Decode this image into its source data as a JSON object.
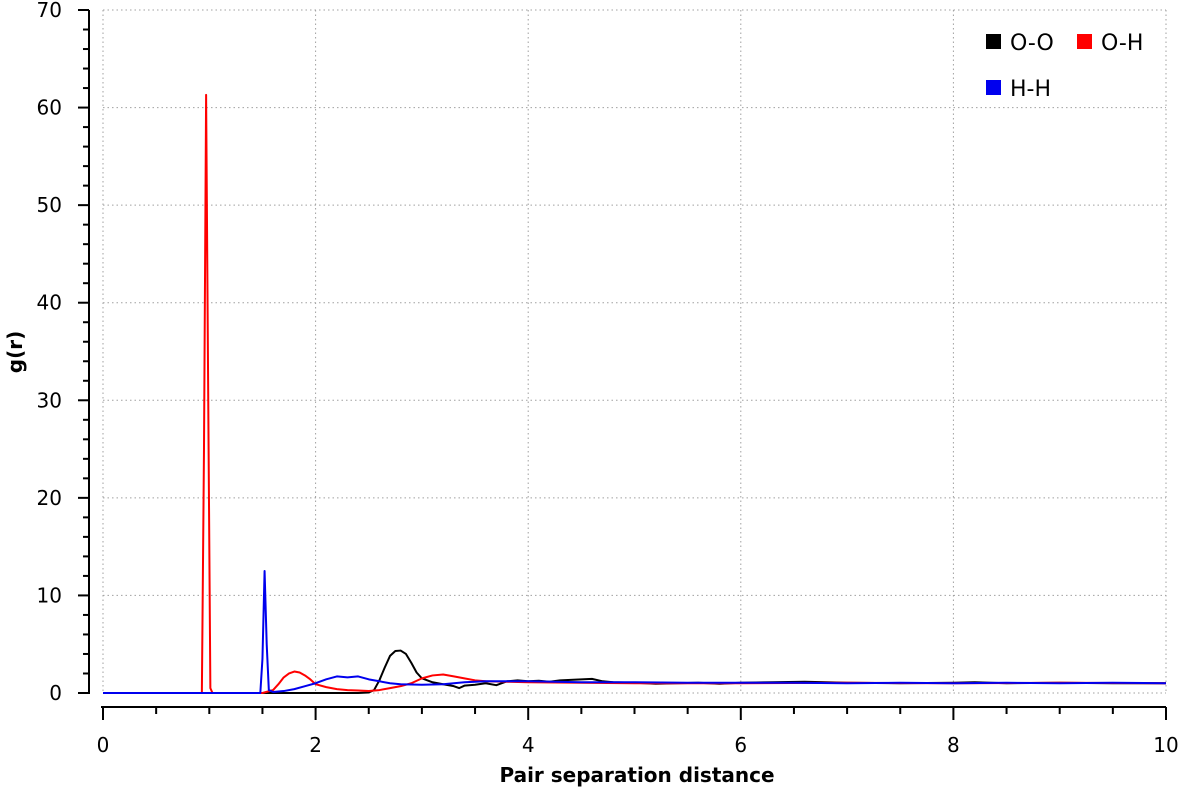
{
  "chart_data": {
    "type": "line",
    "title": "",
    "xlabel": "Pair separation distance",
    "ylabel": "g(r)",
    "xlim": [
      0,
      10
    ],
    "ylim": [
      0,
      70
    ],
    "x_ticks": [
      0,
      2,
      4,
      6,
      8,
      10
    ],
    "y_ticks": [
      0,
      10,
      20,
      30,
      40,
      50,
      60,
      70
    ],
    "grid": true,
    "legend_position": "top-right",
    "series": [
      {
        "name": "O-O",
        "color": "#000000",
        "points": [
          [
            0.0,
            0
          ],
          [
            2.4,
            0
          ],
          [
            2.5,
            0.05
          ],
          [
            2.55,
            0.3
          ],
          [
            2.6,
            1.3
          ],
          [
            2.65,
            2.6
          ],
          [
            2.7,
            3.8
          ],
          [
            2.75,
            4.3
          ],
          [
            2.8,
            4.35
          ],
          [
            2.85,
            4.0
          ],
          [
            2.9,
            3.1
          ],
          [
            2.95,
            2.1
          ],
          [
            3.0,
            1.5
          ],
          [
            3.1,
            1.1
          ],
          [
            3.2,
            0.9
          ],
          [
            3.3,
            0.7
          ],
          [
            3.35,
            0.5
          ],
          [
            3.4,
            0.75
          ],
          [
            3.5,
            0.85
          ],
          [
            3.6,
            1.0
          ],
          [
            3.7,
            0.8
          ],
          [
            3.8,
            1.2
          ],
          [
            3.9,
            1.3
          ],
          [
            4.0,
            1.2
          ],
          [
            4.1,
            1.25
          ],
          [
            4.2,
            1.15
          ],
          [
            4.3,
            1.3
          ],
          [
            4.4,
            1.35
          ],
          [
            4.5,
            1.4
          ],
          [
            4.6,
            1.45
          ],
          [
            4.7,
            1.2
          ],
          [
            4.8,
            1.1
          ],
          [
            5.0,
            1.05
          ],
          [
            5.2,
            0.95
          ],
          [
            5.4,
            1.0
          ],
          [
            5.6,
            1.05
          ],
          [
            5.8,
            0.95
          ],
          [
            6.0,
            1.05
          ],
          [
            6.3,
            1.1
          ],
          [
            6.6,
            1.15
          ],
          [
            7.0,
            1.05
          ],
          [
            7.5,
            1.0
          ],
          [
            8.0,
            1.05
          ],
          [
            8.2,
            1.1
          ],
          [
            8.5,
            1.0
          ],
          [
            9.0,
            1.05
          ],
          [
            9.5,
            1.0
          ],
          [
            10.0,
            1.0
          ]
        ]
      },
      {
        "name": "O-H",
        "color": "#ff0000",
        "points": [
          [
            0.0,
            0
          ],
          [
            0.93,
            0
          ],
          [
            0.95,
            25
          ],
          [
            0.97,
            61.3
          ],
          [
            0.99,
            30
          ],
          [
            1.01,
            0.5
          ],
          [
            1.03,
            0
          ],
          [
            1.5,
            0
          ],
          [
            1.6,
            0.3
          ],
          [
            1.65,
            0.9
          ],
          [
            1.7,
            1.6
          ],
          [
            1.75,
            2.0
          ],
          [
            1.8,
            2.2
          ],
          [
            1.85,
            2.1
          ],
          [
            1.9,
            1.8
          ],
          [
            1.95,
            1.4
          ],
          [
            2.0,
            0.9
          ],
          [
            2.1,
            0.6
          ],
          [
            2.2,
            0.4
          ],
          [
            2.3,
            0.3
          ],
          [
            2.4,
            0.25
          ],
          [
            2.5,
            0.2
          ],
          [
            2.6,
            0.3
          ],
          [
            2.7,
            0.5
          ],
          [
            2.8,
            0.7
          ],
          [
            2.9,
            1.0
          ],
          [
            3.0,
            1.5
          ],
          [
            3.1,
            1.8
          ],
          [
            3.2,
            1.9
          ],
          [
            3.3,
            1.7
          ],
          [
            3.4,
            1.5
          ],
          [
            3.5,
            1.3
          ],
          [
            3.6,
            1.2
          ],
          [
            3.8,
            1.15
          ],
          [
            4.0,
            1.1
          ],
          [
            4.5,
            1.05
          ],
          [
            5.0,
            1.0
          ],
          [
            6.0,
            1.0
          ],
          [
            7.0,
            1.05
          ],
          [
            8.0,
            1.0
          ],
          [
            9.0,
            1.05
          ],
          [
            10.0,
            1.0
          ]
        ]
      },
      {
        "name": "H-H",
        "color": "#0000ee",
        "points": [
          [
            0.0,
            0
          ],
          [
            1.48,
            0
          ],
          [
            1.5,
            3.5
          ],
          [
            1.52,
            12.5
          ],
          [
            1.54,
            5
          ],
          [
            1.56,
            0.3
          ],
          [
            1.6,
            0.1
          ],
          [
            1.7,
            0.2
          ],
          [
            1.8,
            0.4
          ],
          [
            1.9,
            0.7
          ],
          [
            2.0,
            1.0
          ],
          [
            2.1,
            1.4
          ],
          [
            2.2,
            1.7
          ],
          [
            2.3,
            1.6
          ],
          [
            2.4,
            1.7
          ],
          [
            2.5,
            1.4
          ],
          [
            2.6,
            1.2
          ],
          [
            2.7,
            1.0
          ],
          [
            2.8,
            0.9
          ],
          [
            3.0,
            0.85
          ],
          [
            3.2,
            0.9
          ],
          [
            3.4,
            1.1
          ],
          [
            3.6,
            1.2
          ],
          [
            3.8,
            1.2
          ],
          [
            4.0,
            1.2
          ],
          [
            4.5,
            1.1
          ],
          [
            5.0,
            1.1
          ],
          [
            5.5,
            1.05
          ],
          [
            6.0,
            1.05
          ],
          [
            6.5,
            1.05
          ],
          [
            7.0,
            1.0
          ],
          [
            7.5,
            1.05
          ],
          [
            8.0,
            1.0
          ],
          [
            8.5,
            1.05
          ],
          [
            9.0,
            1.0
          ],
          [
            9.5,
            1.05
          ],
          [
            10.0,
            1.0
          ]
        ]
      }
    ]
  }
}
